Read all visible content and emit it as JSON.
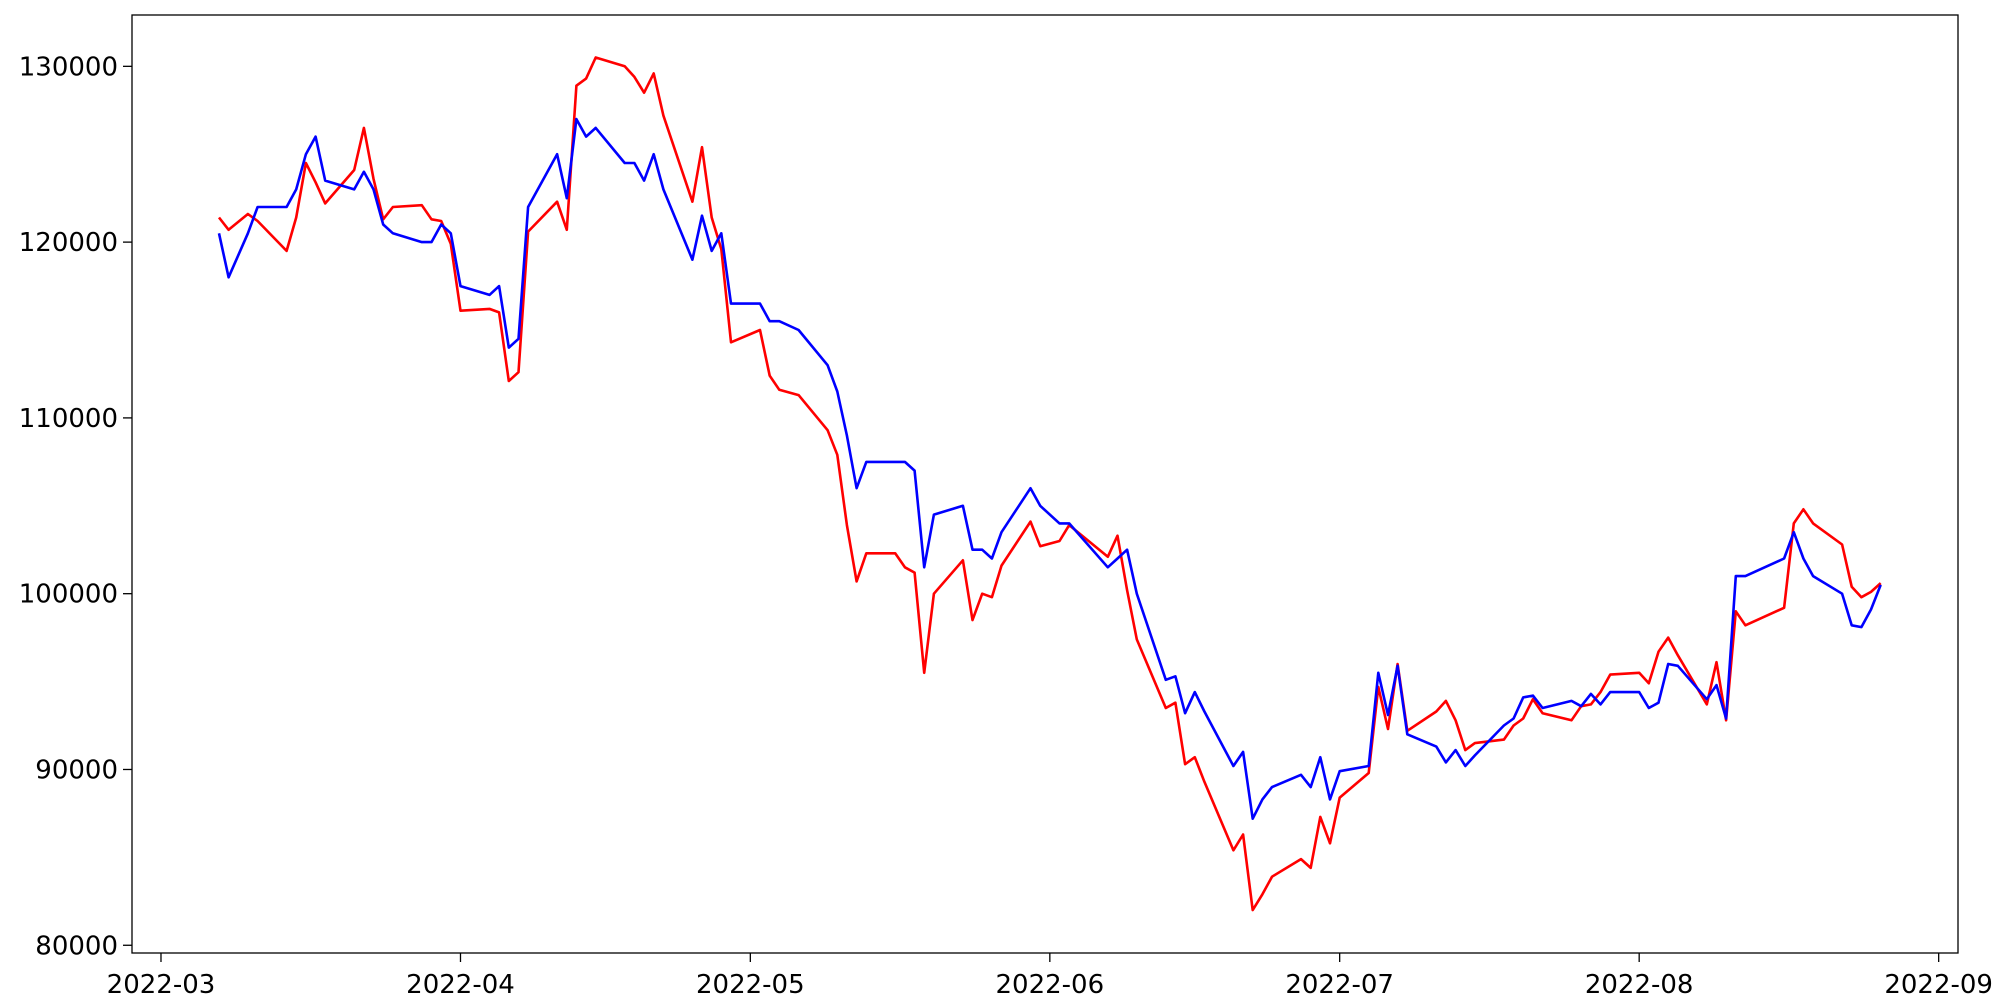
{
  "chart_data": {
    "type": "line",
    "x": [
      "2022-03-07",
      "2022-03-08",
      "2022-03-10",
      "2022-03-11",
      "2022-03-14",
      "2022-03-15",
      "2022-03-16",
      "2022-03-17",
      "2022-03-18",
      "2022-03-21",
      "2022-03-22",
      "2022-03-23",
      "2022-03-24",
      "2022-03-25",
      "2022-03-28",
      "2022-03-29",
      "2022-03-30",
      "2022-03-31",
      "2022-04-01",
      "2022-04-04",
      "2022-04-05",
      "2022-04-06",
      "2022-04-07",
      "2022-04-08",
      "2022-04-11",
      "2022-04-12",
      "2022-04-13",
      "2022-04-14",
      "2022-04-15",
      "2022-04-18",
      "2022-04-19",
      "2022-04-20",
      "2022-04-21",
      "2022-04-22",
      "2022-04-25",
      "2022-04-26",
      "2022-04-27",
      "2022-04-28",
      "2022-04-29",
      "2022-05-02",
      "2022-05-03",
      "2022-05-04",
      "2022-05-06",
      "2022-05-09",
      "2022-05-10",
      "2022-05-11",
      "2022-05-12",
      "2022-05-13",
      "2022-05-16",
      "2022-05-17",
      "2022-05-18",
      "2022-05-19",
      "2022-05-20",
      "2022-05-23",
      "2022-05-24",
      "2022-05-25",
      "2022-05-26",
      "2022-05-27",
      "2022-05-30",
      "2022-05-31",
      "2022-06-02",
      "2022-06-03",
      "2022-06-07",
      "2022-06-08",
      "2022-06-09",
      "2022-06-10",
      "2022-06-13",
      "2022-06-14",
      "2022-06-15",
      "2022-06-16",
      "2022-06-17",
      "2022-06-20",
      "2022-06-21",
      "2022-06-22",
      "2022-06-23",
      "2022-06-24",
      "2022-06-27",
      "2022-06-28",
      "2022-06-29",
      "2022-06-30",
      "2022-07-01",
      "2022-07-04",
      "2022-07-05",
      "2022-07-06",
      "2022-07-07",
      "2022-07-08",
      "2022-07-11",
      "2022-07-12",
      "2022-07-13",
      "2022-07-14",
      "2022-07-15",
      "2022-07-18",
      "2022-07-19",
      "2022-07-20",
      "2022-07-21",
      "2022-07-22",
      "2022-07-25",
      "2022-07-26",
      "2022-07-27",
      "2022-07-28",
      "2022-07-29",
      "2022-08-01",
      "2022-08-02",
      "2022-08-03",
      "2022-08-04",
      "2022-08-05",
      "2022-08-08",
      "2022-08-09",
      "2022-08-10",
      "2022-08-11",
      "2022-08-12",
      "2022-08-16",
      "2022-08-17",
      "2022-08-18",
      "2022-08-19",
      "2022-08-22",
      "2022-08-23",
      "2022-08-24",
      "2022-08-25",
      "2022-08-26"
    ],
    "series": [
      {
        "color": "#ff0000",
        "values": [
          121400,
          120700,
          121600,
          121200,
          119500,
          121400,
          124500,
          123400,
          122200,
          124100,
          126500,
          123600,
          121300,
          122000,
          122100,
          121300,
          121200,
          119900,
          116100,
          116200,
          116000,
          112100,
          112600,
          120600,
          122300,
          120700,
          128900,
          129300,
          130500,
          130000,
          129400,
          128500,
          129600,
          127200,
          122300,
          125400,
          121400,
          119600,
          114300,
          115000,
          112400,
          111600,
          111300,
          109300,
          107900,
          103900,
          100700,
          102300,
          102300,
          101500,
          101200,
          95500,
          100000,
          101900,
          98500,
          100000,
          99800,
          101600,
          104100,
          102700,
          103000,
          103900,
          102100,
          103300,
          100200,
          97400,
          93500,
          93800,
          90300,
          90700,
          89300,
          85400,
          86300,
          82000,
          82900,
          83900,
          84900,
          84400,
          87300,
          85800,
          88400,
          89800,
          94700,
          92300,
          96000,
          92200,
          93300,
          93900,
          92800,
          91100,
          91500,
          91700,
          92500,
          92900,
          94000,
          93200,
          92800,
          93600,
          93700,
          94400,
          95400,
          95500,
          94900,
          96700,
          97500,
          96500,
          93700,
          96100,
          92800,
          99000,
          98200,
          99200,
          104000,
          104800,
          104000,
          102800,
          100400,
          99800,
          100100,
          100600
        ]
      },
      {
        "color": "#0000ff",
        "values": [
          120500,
          118000,
          120500,
          122000,
          122000,
          123000,
          125000,
          126000,
          123500,
          123000,
          124000,
          123000,
          121000,
          120500,
          120000,
          120000,
          121000,
          120500,
          117500,
          117000,
          117500,
          114000,
          114500,
          122000,
          125000,
          122500,
          127000,
          126000,
          126500,
          124500,
          124500,
          123500,
          125000,
          123000,
          119000,
          121500,
          119500,
          120500,
          116500,
          116500,
          115500,
          115500,
          115000,
          113000,
          111500,
          109000,
          106000,
          107500,
          107500,
          107500,
          107000,
          101500,
          104500,
          105000,
          102500,
          102500,
          102000,
          103500,
          106000,
          105000,
          104000,
          104000,
          101500,
          102000,
          102500,
          100000,
          95100,
          95300,
          93200,
          94400,
          93300,
          90200,
          91000,
          87200,
          88300,
          89000,
          89700,
          89000,
          90700,
          88300,
          89900,
          90200,
          95500,
          93100,
          95900,
          92000,
          91300,
          90400,
          91100,
          90200,
          90800,
          92500,
          92900,
          94100,
          94200,
          93500,
          93900,
          93600,
          94300,
          93700,
          94400,
          94400,
          93500,
          93800,
          96000,
          95900,
          94000,
          94800,
          92900,
          101000,
          101000,
          102000,
          103500,
          102000,
          101000,
          100000,
          98200,
          98100,
          99100,
          100500
        ]
      }
    ],
    "xlim": [
      "2022-02-26",
      "2022-09-03"
    ],
    "xticks": [
      {
        "value": "2022-03-01",
        "label": "2022-03"
      },
      {
        "value": "2022-04-01",
        "label": "2022-04"
      },
      {
        "value": "2022-05-01",
        "label": "2022-05"
      },
      {
        "value": "2022-06-01",
        "label": "2022-06"
      },
      {
        "value": "2022-07-01",
        "label": "2022-07"
      },
      {
        "value": "2022-08-01",
        "label": "2022-08"
      },
      {
        "value": "2022-09-01",
        "label": "2022-09"
      }
    ],
    "ylim": [
      79560,
      132920
    ],
    "yticks": [
      80000,
      90000,
      100000,
      110000,
      120000,
      130000
    ]
  }
}
